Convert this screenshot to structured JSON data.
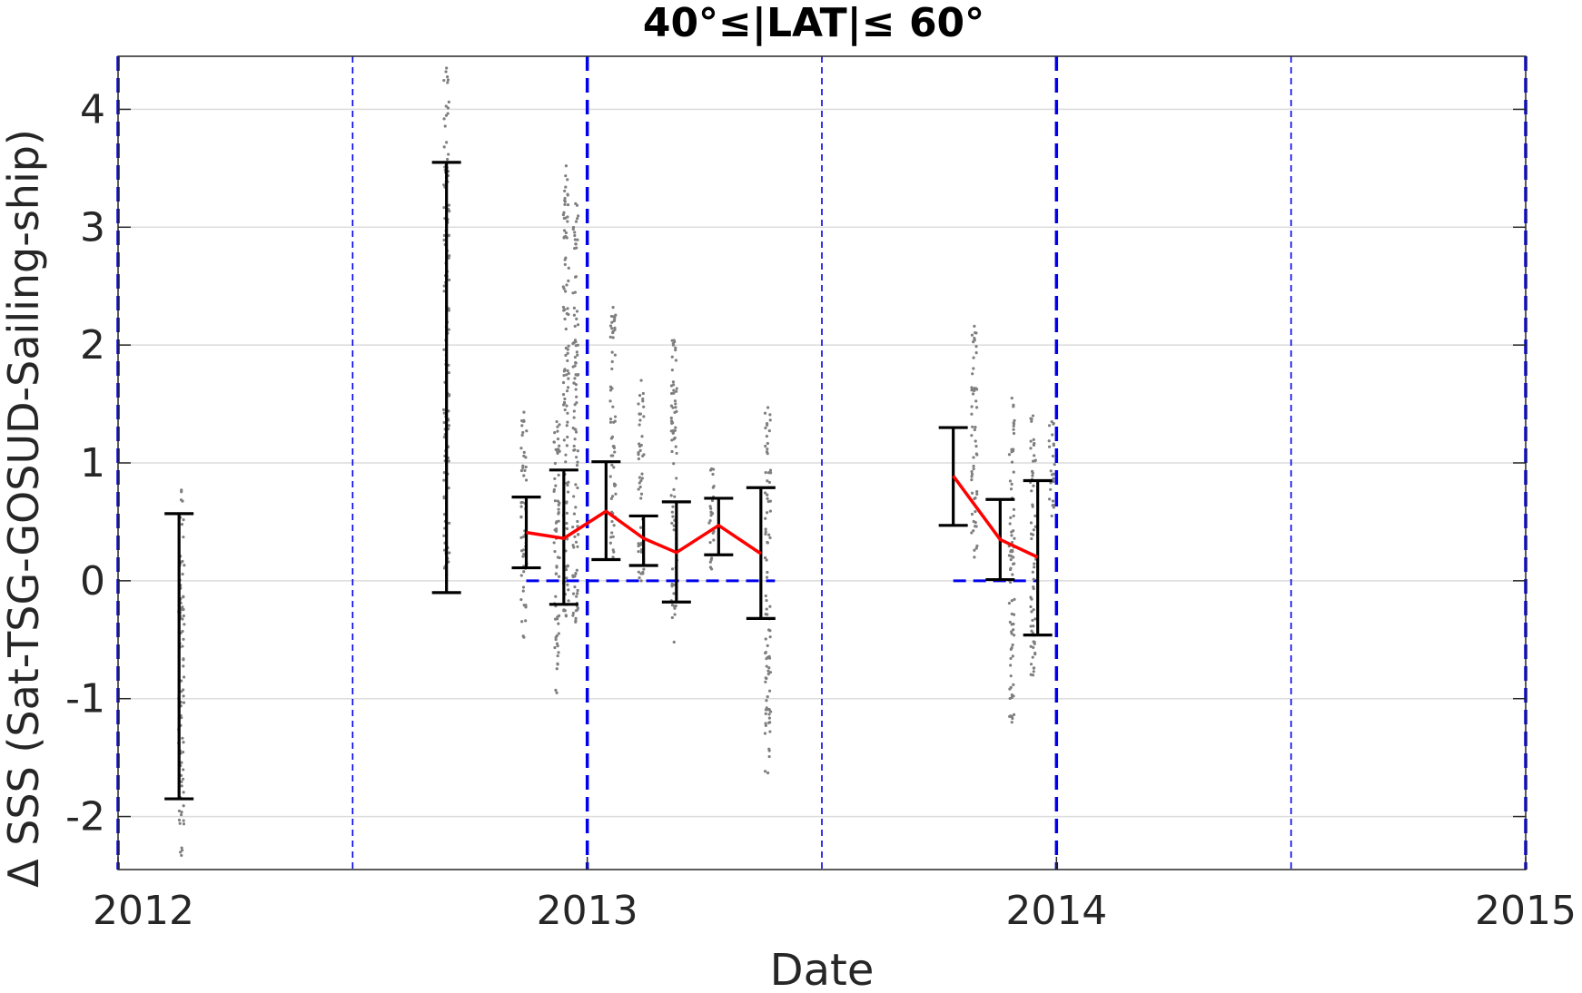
{
  "chart_data": {
    "type": "scatter",
    "title": "40°≤|LAT|≤ 60°",
    "xlabel": "Date",
    "ylabel": "Δ SSS (Sat-TSG-GOSUD-Sailing-ship)",
    "xlim": [
      2012.0,
      2015.0
    ],
    "ylim": [
      -2.45,
      4.45
    ],
    "xticks": [
      2012,
      2013,
      2014,
      2015
    ],
    "xtick_labels": [
      "2012",
      "2013",
      "2014",
      "2015"
    ],
    "yticks": [
      -2,
      -1,
      0,
      1,
      2,
      3,
      4
    ],
    "ytick_labels": [
      "-2",
      "-1",
      "0",
      "1",
      "2",
      "3",
      "4"
    ],
    "grid": true,
    "vertical_reference_lines": {
      "year_boundaries": [
        2012.0,
        2013.0,
        2014.0,
        2015.0
      ],
      "mid_years": [
        2012.5,
        2013.5,
        2014.5
      ],
      "color": "#0000ee"
    },
    "error_bars": [
      {
        "x": 2012.13,
        "low": -1.85,
        "high": 0.57
      },
      {
        "x": 2012.7,
        "low": -0.1,
        "high": 3.55
      },
      {
        "x": 2012.87,
        "low": 0.11,
        "high": 0.71
      },
      {
        "x": 2012.95,
        "low": -0.2,
        "high": 0.94
      },
      {
        "x": 2013.04,
        "low": 0.18,
        "high": 1.01
      },
      {
        "x": 2013.12,
        "low": 0.13,
        "high": 0.55
      },
      {
        "x": 2013.19,
        "low": -0.18,
        "high": 0.67
      },
      {
        "x": 2013.28,
        "low": 0.22,
        "high": 0.7
      },
      {
        "x": 2013.37,
        "low": -0.32,
        "high": 0.79
      },
      {
        "x": 2013.78,
        "low": 0.47,
        "high": 1.3
      },
      {
        "x": 2013.88,
        "low": 0.01,
        "high": 0.69
      },
      {
        "x": 2013.96,
        "low": -0.46,
        "high": 0.85
      }
    ],
    "mean_lines": [
      {
        "color": "#ff0000",
        "x": [
          2012.87,
          2012.95,
          2013.04,
          2013.12,
          2013.19,
          2013.28,
          2013.37
        ],
        "y": [
          0.41,
          0.36,
          0.59,
          0.36,
          0.24,
          0.47,
          0.23
        ]
      },
      {
        "color": "#ff0000",
        "x": [
          2013.78,
          2013.88,
          2013.96
        ],
        "y": [
          0.89,
          0.35,
          0.2
        ]
      }
    ],
    "zero_reference_segments": [
      {
        "color": "#0000ee",
        "x": [
          2012.87,
          2013.4
        ],
        "y": 0
      },
      {
        "color": "#0000ee",
        "x": [
          2013.78,
          2013.96
        ],
        "y": 0
      }
    ],
    "sample_clusters": [
      {
        "x": 2012.135,
        "ymin": -2.33,
        "ymax": 0.77
      },
      {
        "x": 2012.7,
        "ymin": 0.05,
        "ymax": 4.35
      },
      {
        "x": 2012.865,
        "ymin": -0.48,
        "ymax": 1.43
      },
      {
        "x": 2012.935,
        "ymin": -0.95,
        "ymax": 1.35
      },
      {
        "x": 2012.955,
        "ymin": -0.3,
        "ymax": 3.52
      },
      {
        "x": 2012.975,
        "ymin": -0.35,
        "ymax": 3.2
      },
      {
        "x": 2013.055,
        "ymin": 0.2,
        "ymax": 2.32
      },
      {
        "x": 2013.115,
        "ymin": 0.0,
        "ymax": 1.7
      },
      {
        "x": 2013.185,
        "ymin": -0.52,
        "ymax": 2.04
      },
      {
        "x": 2013.265,
        "ymin": 0.1,
        "ymax": 0.95
      },
      {
        "x": 2013.385,
        "ymin": -1.63,
        "ymax": 1.47
      },
      {
        "x": 2013.825,
        "ymin": 0.2,
        "ymax": 2.16
      },
      {
        "x": 2013.905,
        "ymin": -1.2,
        "ymax": 1.55
      },
      {
        "x": 2013.95,
        "ymin": -0.8,
        "ymax": 1.4
      },
      {
        "x": 2013.99,
        "ymin": 0.55,
        "ymax": 1.35
      }
    ]
  }
}
